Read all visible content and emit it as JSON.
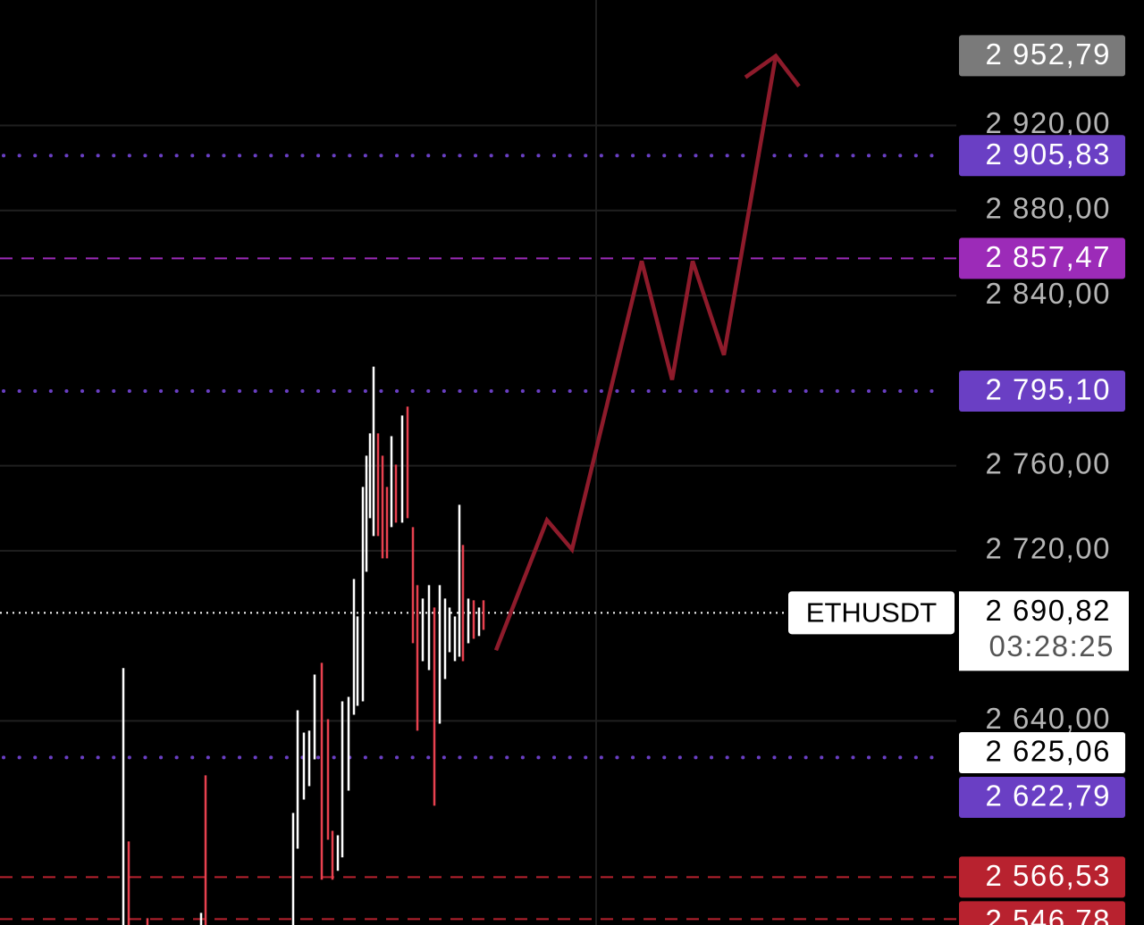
{
  "chart_data": {
    "type": "candlestick",
    "background": "#000000",
    "ylim": [
      2544,
      2979
    ],
    "yticks": [
      {
        "value": 2920,
        "label": "2 920,00"
      },
      {
        "value": 2880,
        "label": "2 880,00"
      },
      {
        "value": 2840,
        "label": "2 840,00"
      },
      {
        "value": 2760,
        "label": "2 760,00"
      },
      {
        "value": 2720,
        "label": "2 720,00"
      },
      {
        "value": 2640,
        "label": "2 640,00"
      }
    ],
    "grid": true,
    "up_color": "#ffffff",
    "down_color": "#e8414f",
    "candles": {
      "high": [
        2664.8,
        2583.3,
        2547.2,
        2549.7,
        2614.4,
        2596.7,
        2645.0,
        2634.5,
        2635.4,
        2661.8,
        2667.3,
        2640.8,
        2588.3,
        2586.2,
        2649.2,
        2651.3,
        2706.7,
        2689.1,
        2750.0,
        2764.7,
        2775.2,
        2806.6,
        2775.2,
        2764.7,
        2750.0,
        2773.9,
        2760.5,
        2783.6,
        2787.8,
        2731.1,
        2703.8,
        2697.5,
        2703.8,
        2693.3,
        2703.8,
        2697.5,
        2693.3,
        2689.1,
        2741.6,
        2722.7,
        2697.5,
        2696.7,
        2693.3,
        2696.7
      ],
      "low": [
        2544,
        2544,
        2544,
        2544,
        2544,
        2544,
        2579.9,
        2603.0,
        2609.3,
        2621.9,
        2565.3,
        2584.1,
        2565.3,
        2569.5,
        2575.8,
        2607.2,
        2642.9,
        2647.1,
        2649.2,
        2710.1,
        2735.3,
        2726.9,
        2726.9,
        2716.4,
        2716.4,
        2731.1,
        2733.2,
        2733.2,
        2735.3,
        2676.5,
        2635.4,
        2668.1,
        2663.9,
        2600.1,
        2638.7,
        2659.7,
        2672.3,
        2668.1,
        2670.2,
        2668.1,
        2676.5,
        2678.6,
        2679.9,
        2682.8
      ],
      "up": [
        true,
        false,
        false,
        true,
        false,
        true,
        true,
        true,
        true,
        true,
        false,
        false,
        false,
        true,
        true,
        true,
        true,
        true,
        true,
        true,
        true,
        true,
        false,
        false,
        false,
        true,
        false,
        true,
        false,
        false,
        false,
        true,
        true,
        false,
        true,
        true,
        true,
        true,
        true,
        false,
        true,
        false,
        true,
        false
      ]
    },
    "levels": [
      {
        "value": 2952.79,
        "label": "2 952,79",
        "color": "#7a7a7a",
        "text_color": "#ffffff",
        "line": "none"
      },
      {
        "value": 2905.83,
        "label": "2 905,83",
        "color": "#6a3fc4",
        "text_color": "#ffffff",
        "line": "dotted"
      },
      {
        "value": 2857.47,
        "label": "2 857,47",
        "color": "#9c2bb8",
        "text_color": "#ffffff",
        "line": "dashed"
      },
      {
        "value": 2795.1,
        "label": "2 795,10",
        "color": "#6a3fc4",
        "text_color": "#ffffff",
        "line": "dotted"
      },
      {
        "value": 2625.06,
        "label": "2 625,06",
        "color": "#ffffff",
        "text_color": "#000000",
        "line": "none"
      },
      {
        "value": 2622.79,
        "label": "2 622,79",
        "color": "#6a3fc4",
        "text_color": "#ffffff",
        "line": "dotted"
      },
      {
        "value": 2566.53,
        "label": "2 566,53",
        "color": "#b8222f",
        "text_color": "#ffffff",
        "line": "dashed"
      },
      {
        "value": 2546.78,
        "label": "2 546,78",
        "color": "#b8222f",
        "text_color": "#ffffff",
        "line": "dashed"
      }
    ],
    "current": {
      "symbol": "ETHUSDT",
      "value": 2690.82,
      "label": "2 690,82",
      "countdown": "03:28:25"
    },
    "projection": {
      "color": "#8e1b2b",
      "values": [
        2673.2,
        2734.4,
        2720.6,
        2856.2,
        2800.4,
        2856.2,
        2812.1,
        2952.7
      ]
    }
  }
}
